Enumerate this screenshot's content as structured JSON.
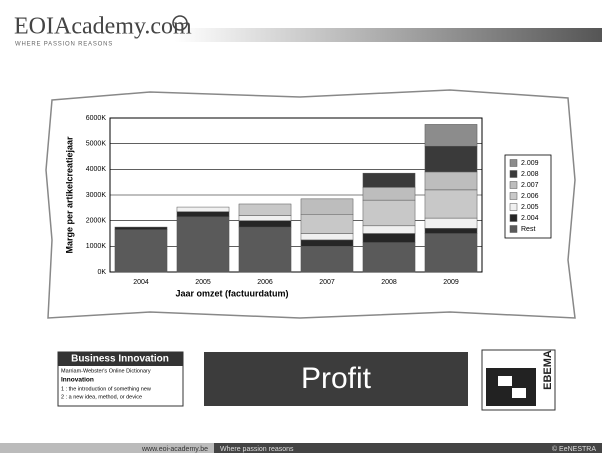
{
  "header": {
    "logo": "EOIAcademy.com",
    "tagline": "WHERE PASSION REASONS"
  },
  "chart_data": {
    "type": "bar",
    "stacked": true,
    "x_label": "Jaar omzet (factuurdatum)",
    "y_label": "Marge per artikelcreatiejaar",
    "categories": [
      "2004",
      "2005",
      "2006",
      "2007",
      "2008",
      "2009"
    ],
    "series": [
      {
        "name": "Rest",
        "color": "#5a5a5a",
        "values": [
          1650,
          2150,
          1750,
          1000,
          1150,
          1500
        ]
      },
      {
        "name": "2.004",
        "color": "#262626",
        "values": [
          100,
          200,
          250,
          250,
          350,
          200
        ]
      },
      {
        "name": "2.005",
        "color": "#f0f0f0",
        "values": [
          null,
          180,
          200,
          250,
          300,
          400
        ]
      },
      {
        "name": "2.006",
        "color": "#c8c8c8",
        "values": [
          null,
          null,
          450,
          750,
          1000,
          1100
        ]
      },
      {
        "name": "2.007",
        "color": "#bdbdbd",
        "values": [
          null,
          null,
          null,
          600,
          500,
          700
        ]
      },
      {
        "name": "2.008",
        "color": "#3a3a3a",
        "values": [
          null,
          null,
          null,
          null,
          550,
          1000
        ]
      },
      {
        "name": "2.009",
        "color": "#8c8c8c",
        "values": [
          null,
          null,
          null,
          null,
          null,
          850
        ]
      }
    ],
    "ylim": [
      0,
      6000
    ],
    "yticks": [
      {
        "value": 0,
        "label": "0K"
      },
      {
        "value": 1000,
        "label": "1000K"
      },
      {
        "value": 2000,
        "label": "2000K"
      },
      {
        "value": 3000,
        "label": "3000K"
      },
      {
        "value": 4000,
        "label": "4000K"
      },
      {
        "value": 5000,
        "label": "5000K"
      },
      {
        "value": 6000,
        "label": "6000K"
      }
    ],
    "grid": true,
    "legend": "right"
  },
  "definition": {
    "title": "Business Innovation",
    "source": "Marriam-Webster's Online Dictionary",
    "term": "Innovation",
    "lines": [
      "1 : the introduction of something new",
      "2 : a new idea, method, or device"
    ]
  },
  "banner": "Profit",
  "partner_logo": "EBEMA",
  "footer": {
    "url": "www.eoi-academy.be",
    "motto": "Where passion reasons",
    "copyright": "© EeNESTRA"
  }
}
